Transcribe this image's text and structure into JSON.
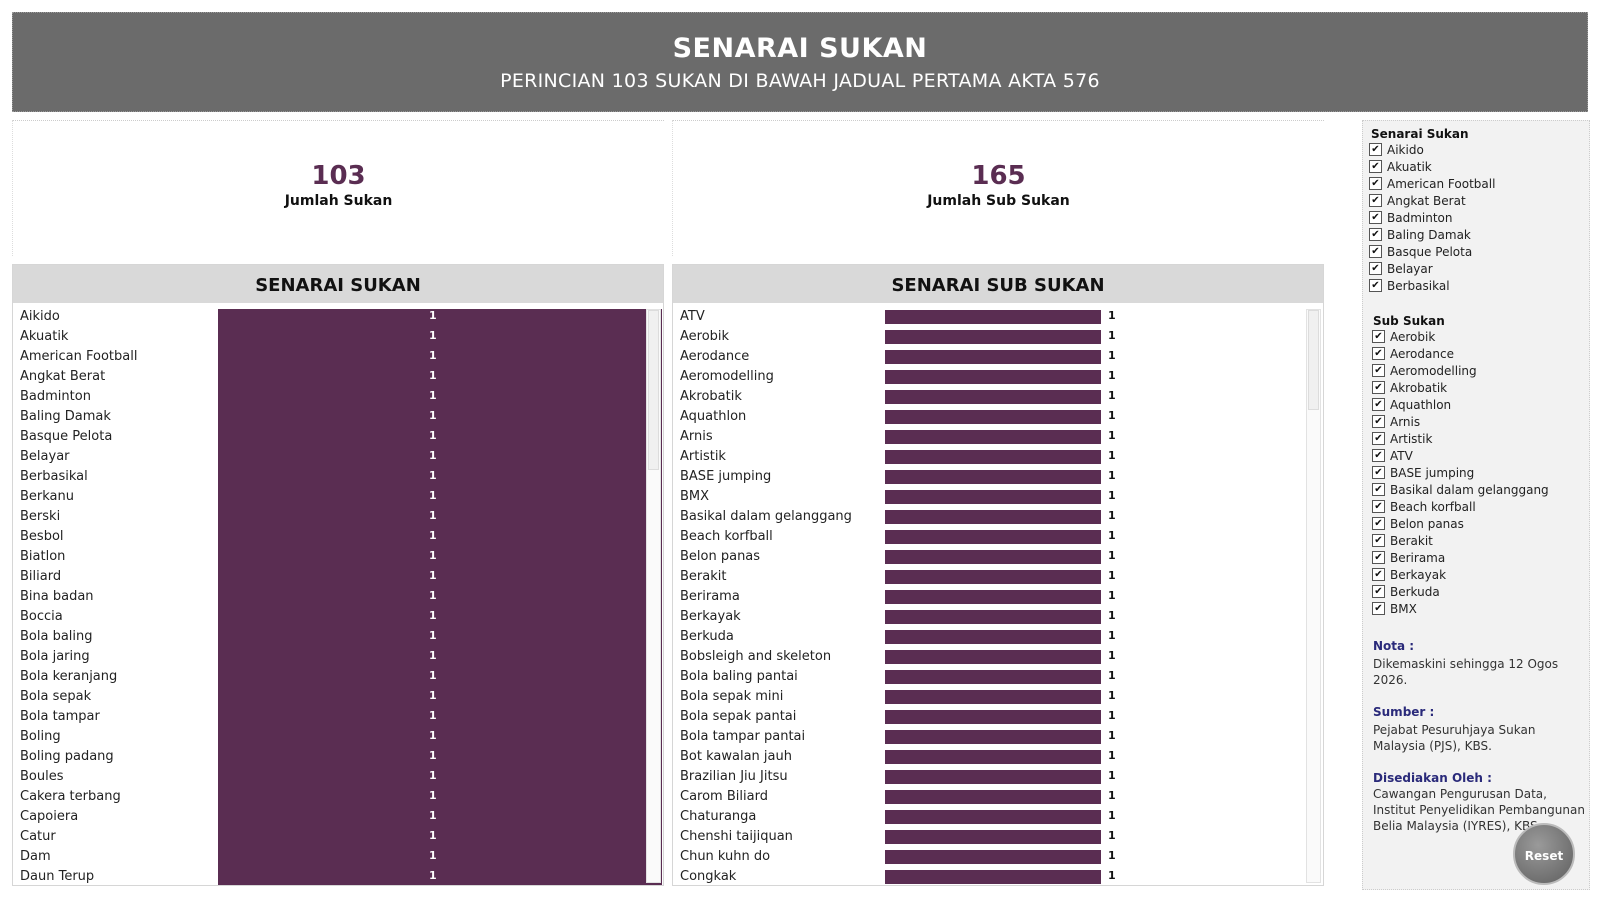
{
  "header": {
    "title": "SENARAI SUKAN",
    "subtitle": "PERINCIAN 103 SUKAN DI BAWAH JADUAL PERTAMA AKTA 576"
  },
  "kpi": {
    "sukan": {
      "value": "103",
      "label": "Jumlah Sukan"
    },
    "sub_sukan": {
      "value": "165",
      "label": "Jumlah Sub Sukan"
    }
  },
  "panels": {
    "sukan_title": "SENARAI SUKAN",
    "sub_title": "SENARAI SUB SUKAN"
  },
  "sukan_list": [
    {
      "name": "Aikido",
      "value": "1"
    },
    {
      "name": "Akuatik",
      "value": "1"
    },
    {
      "name": "American Football",
      "value": "1"
    },
    {
      "name": "Angkat Berat",
      "value": "1"
    },
    {
      "name": "Badminton",
      "value": "1"
    },
    {
      "name": "Baling Damak",
      "value": "1"
    },
    {
      "name": "Basque Pelota",
      "value": "1"
    },
    {
      "name": "Belayar",
      "value": "1"
    },
    {
      "name": "Berbasikal",
      "value": "1"
    },
    {
      "name": "Berkanu",
      "value": "1"
    },
    {
      "name": "Berski",
      "value": "1"
    },
    {
      "name": "Besbol",
      "value": "1"
    },
    {
      "name": "Biatlon",
      "value": "1"
    },
    {
      "name": "Biliard",
      "value": "1"
    },
    {
      "name": "Bina badan",
      "value": "1"
    },
    {
      "name": "Boccia",
      "value": "1"
    },
    {
      "name": "Bola baling",
      "value": "1"
    },
    {
      "name": "Bola jaring",
      "value": "1"
    },
    {
      "name": "Bola keranjang",
      "value": "1"
    },
    {
      "name": "Bola sepak",
      "value": "1"
    },
    {
      "name": "Bola tampar",
      "value": "1"
    },
    {
      "name": "Boling",
      "value": "1"
    },
    {
      "name": "Boling padang",
      "value": "1"
    },
    {
      "name": "Boules",
      "value": "1"
    },
    {
      "name": "Cakera terbang",
      "value": "1"
    },
    {
      "name": "Capoiera",
      "value": "1"
    },
    {
      "name": "Catur",
      "value": "1"
    },
    {
      "name": "Dam",
      "value": "1"
    },
    {
      "name": "Daun Terup",
      "value": "1"
    }
  ],
  "sub_list": [
    {
      "name": "ATV",
      "value": "1"
    },
    {
      "name": "Aerobik",
      "value": "1"
    },
    {
      "name": "Aerodance",
      "value": "1"
    },
    {
      "name": "Aeromodelling",
      "value": "1"
    },
    {
      "name": "Akrobatik",
      "value": "1"
    },
    {
      "name": "Aquathlon",
      "value": "1"
    },
    {
      "name": "Arnis",
      "value": "1"
    },
    {
      "name": "Artistik",
      "value": "1"
    },
    {
      "name": "BASE jumping",
      "value": "1"
    },
    {
      "name": "BMX",
      "value": "1"
    },
    {
      "name": "Basikal dalam gelanggang",
      "value": "1"
    },
    {
      "name": "Beach korfball",
      "value": "1"
    },
    {
      "name": "Belon panas",
      "value": "1"
    },
    {
      "name": "Berakit",
      "value": "1"
    },
    {
      "name": "Berirama",
      "value": "1"
    },
    {
      "name": "Berkayak",
      "value": "1"
    },
    {
      "name": "Berkuda",
      "value": "1"
    },
    {
      "name": "Bobsleigh and skeleton",
      "value": "1"
    },
    {
      "name": "Bola baling pantai",
      "value": "1"
    },
    {
      "name": "Bola sepak mini",
      "value": "1"
    },
    {
      "name": "Bola sepak pantai",
      "value": "1"
    },
    {
      "name": "Bola tampar pantai",
      "value": "1"
    },
    {
      "name": "Bot kawalan jauh",
      "value": "1"
    },
    {
      "name": "Brazilian Jiu Jitsu",
      "value": "1"
    },
    {
      "name": "Carom Biliard",
      "value": "1"
    },
    {
      "name": "Chaturanga",
      "value": "1"
    },
    {
      "name": "Chenshi taijiquan",
      "value": "1"
    },
    {
      "name": "Chun kuhn do",
      "value": "1"
    },
    {
      "name": "Congkak",
      "value": "1"
    }
  ],
  "filters": {
    "sukan_title": "Senarai Sukan",
    "sukan_items": [
      "Aikido",
      "Akuatik",
      "American Football",
      "Angkat Berat",
      "Badminton",
      "Baling Damak",
      "Basque Pelota",
      "Belayar",
      "Berbasikal"
    ],
    "sub_title": "Sub Sukan",
    "sub_items": [
      "Aerobik",
      "Aerodance",
      "Aeromodelling",
      "Akrobatik",
      "Aquathlon",
      "Arnis",
      "Artistik",
      "ATV",
      "BASE jumping",
      "Basikal dalam gelanggang",
      "Beach korfball",
      "Belon panas",
      "Berakit",
      "Berirama",
      "Berkayak",
      "Berkuda",
      "BMX"
    ],
    "check_glyph": "✔"
  },
  "notes": {
    "nota_label": "Nota :",
    "nota_text": "Dikemaskini sehingga 12 Ogos 2026.",
    "sumber_label": "Sumber :",
    "sumber_text": "Pejabat Pesuruhjaya Sukan Malaysia (PJS), KBS.",
    "disediakan_label": "Disediakan Oleh :",
    "disediakan_text": "Cawangan Pengurusan Data, Institut Penyelidikan Pembangunan Belia Malaysia (IYRES), KBS."
  },
  "reset": {
    "label": "Reset"
  },
  "colors": {
    "bar": "#5a2d52",
    "header": "#6b6b6b"
  }
}
